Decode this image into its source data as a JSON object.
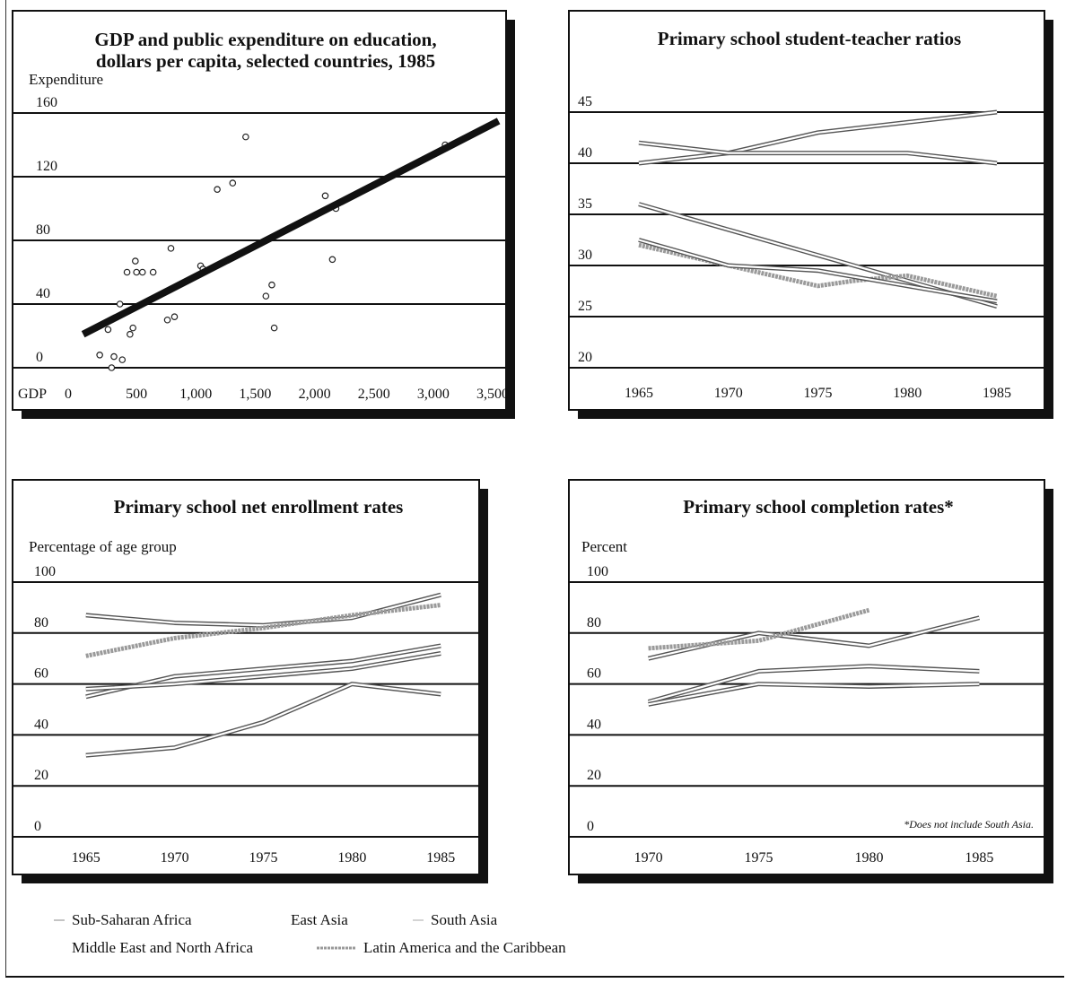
{
  "colors": {
    "sub_saharan": "#555555",
    "east_asia": "#555555",
    "south_asia": "#555555",
    "mena": "#555555",
    "latin_america": "#888888",
    "trend": "#111111"
  },
  "legend": [
    {
      "key": "sub_saharan",
      "label": "Sub-Saharan Africa"
    },
    {
      "key": "east_asia",
      "label": "East Asia"
    },
    {
      "key": "south_asia",
      "label": "South Asia"
    },
    {
      "key": "mena",
      "label": "Middle East and North Africa"
    },
    {
      "key": "latin_america",
      "label": "Latin America and the Caribbean"
    }
  ],
  "chart_data": [
    {
      "type": "scatter",
      "title_line1": "GDP and public expenditure on education,",
      "title_line2": "dollars per capita, selected countries, 1985",
      "ylabel": "Expenditure",
      "xlabel": "GDP",
      "xlim": [
        0,
        3500
      ],
      "ylim": [
        0,
        160
      ],
      "xticks": [
        0,
        500,
        1000,
        1500,
        2000,
        2500,
        3000,
        3500
      ],
      "xtick_labels": [
        "0",
        "500",
        "1,000",
        "1,500",
        "2,000",
        "2,500",
        "3,000",
        "3,500"
      ],
      "yticks": [
        0,
        40,
        80,
        120,
        160
      ],
      "ytick_labels": [
        "0",
        "40",
        "80",
        "120",
        "160"
      ],
      "grid": true,
      "points": [
        [
          190,
          8
        ],
        [
          260,
          24
        ],
        [
          290,
          0
        ],
        [
          310,
          7
        ],
        [
          360,
          40
        ],
        [
          380,
          5
        ],
        [
          420,
          60
        ],
        [
          445,
          21
        ],
        [
          470,
          25
        ],
        [
          490,
          67
        ],
        [
          500,
          60
        ],
        [
          550,
          60
        ],
        [
          640,
          60
        ],
        [
          760,
          30
        ],
        [
          790,
          75
        ],
        [
          820,
          32
        ],
        [
          1040,
          64
        ],
        [
          1060,
          62
        ],
        [
          1180,
          112
        ],
        [
          1310,
          116
        ],
        [
          1420,
          145
        ],
        [
          1590,
          45
        ],
        [
          1640,
          52
        ],
        [
          1660,
          25
        ],
        [
          2090,
          108
        ],
        [
          2150,
          68
        ],
        [
          2180,
          100
        ],
        [
          3100,
          140
        ]
      ],
      "trend_line": [
        [
          50,
          21
        ],
        [
          3550,
          155
        ]
      ]
    },
    {
      "type": "line",
      "title": "Primary school student-teacher ratios",
      "ylim": [
        20,
        45
      ],
      "yticks": [
        20,
        25,
        30,
        35,
        40,
        45
      ],
      "ytick_labels": [
        "20",
        "25",
        "30",
        "35",
        "40",
        "45"
      ],
      "xlim": [
        1964,
        1986
      ],
      "x_ticks": [
        1965,
        1970,
        1975,
        1980,
        1985
      ],
      "xtick_labels": [
        "1965",
        "1970",
        "1975",
        "1980",
        "1985"
      ],
      "grid": true,
      "series": [
        {
          "key": "sub_saharan",
          "x": [
            1965,
            1970,
            1975,
            1980,
            1985
          ],
          "values": [
            40,
            41,
            43,
            44,
            45
          ]
        },
        {
          "key": "south_asia",
          "x": [
            1965,
            1970,
            1975,
            1980,
            1985
          ],
          "values": [
            42,
            41,
            41,
            41,
            40
          ]
        },
        {
          "key": "mena",
          "x": [
            1965,
            1970,
            1975,
            1980,
            1985
          ],
          "values": [
            36,
            33.5,
            31,
            28.5,
            26
          ]
        },
        {
          "key": "latin_america",
          "x": [
            1965,
            1970,
            1975,
            1977,
            1980,
            1985
          ],
          "values": [
            32,
            30,
            28,
            28.5,
            29,
            27
          ]
        },
        {
          "key": "east_asia",
          "x": [
            1965,
            1970,
            1975,
            1980,
            1985
          ],
          "values": [
            32.5,
            30,
            29.5,
            28,
            26.5
          ]
        }
      ]
    },
    {
      "type": "line",
      "title": "Primary school net enrollment rates",
      "ylabel": "Percentage of age group",
      "ylim": [
        0,
        100
      ],
      "yticks": [
        0,
        20,
        40,
        60,
        80,
        100
      ],
      "ytick_labels": [
        "0",
        "20",
        "40",
        "60",
        "80",
        "100"
      ],
      "xlim": [
        1964,
        1986
      ],
      "x_ticks": [
        1965,
        1970,
        1975,
        1980,
        1985
      ],
      "xtick_labels": [
        "1965",
        "1970",
        "1975",
        "1980",
        "1985"
      ],
      "grid": true,
      "series": [
        {
          "key": "east_asia",
          "x": [
            1965,
            1970,
            1975,
            1980,
            1985
          ],
          "values": [
            87,
            84,
            83,
            86,
            95
          ]
        },
        {
          "key": "latin_america",
          "x": [
            1965,
            1970,
            1975,
            1980,
            1985
          ],
          "values": [
            71,
            78,
            82,
            87,
            91
          ]
        },
        {
          "key": "mena",
          "x": [
            1965,
            1970,
            1975,
            1980,
            1985
          ],
          "values": [
            55,
            63,
            66,
            69,
            75
          ]
        },
        {
          "key": "south_asia",
          "x": [
            1965,
            1970,
            1975,
            1980,
            1985
          ],
          "values": [
            58,
            60,
            63,
            66,
            72
          ]
        },
        {
          "key": "sub_saharan",
          "x": [
            1965,
            1970,
            1975,
            1980,
            1985
          ],
          "values": [
            32,
            35,
            45,
            60,
            56
          ]
        }
      ]
    },
    {
      "type": "line",
      "title": "Primary school completion rates*",
      "ylabel": "Percent",
      "ylim": [
        0,
        100
      ],
      "yticks": [
        0,
        20,
        40,
        60,
        80,
        100
      ],
      "ytick_labels": [
        "0",
        "20",
        "40",
        "60",
        "80",
        "100"
      ],
      "xlim": [
        1969,
        1986
      ],
      "x_ticks": [
        1970,
        1975,
        1980,
        1985
      ],
      "xtick_labels": [
        "1970",
        "1975",
        "1980",
        "1985"
      ],
      "grid": true,
      "note": "*Does not include South Asia.",
      "series": [
        {
          "key": "mena",
          "x": [
            1970,
            1975,
            1980,
            1985
          ],
          "values": [
            70,
            80,
            75,
            86
          ]
        },
        {
          "key": "latin_america",
          "x": [
            1970,
            1975,
            1980
          ],
          "values": [
            74,
            77,
            89
          ]
        },
        {
          "key": "east_asia",
          "x": [
            1970,
            1975,
            1980,
            1985
          ],
          "values": [
            53,
            65,
            67,
            65
          ]
        },
        {
          "key": "sub_saharan",
          "x": [
            1970,
            1975,
            1980,
            1985
          ],
          "values": [
            52,
            60,
            59,
            60
          ]
        }
      ]
    }
  ]
}
